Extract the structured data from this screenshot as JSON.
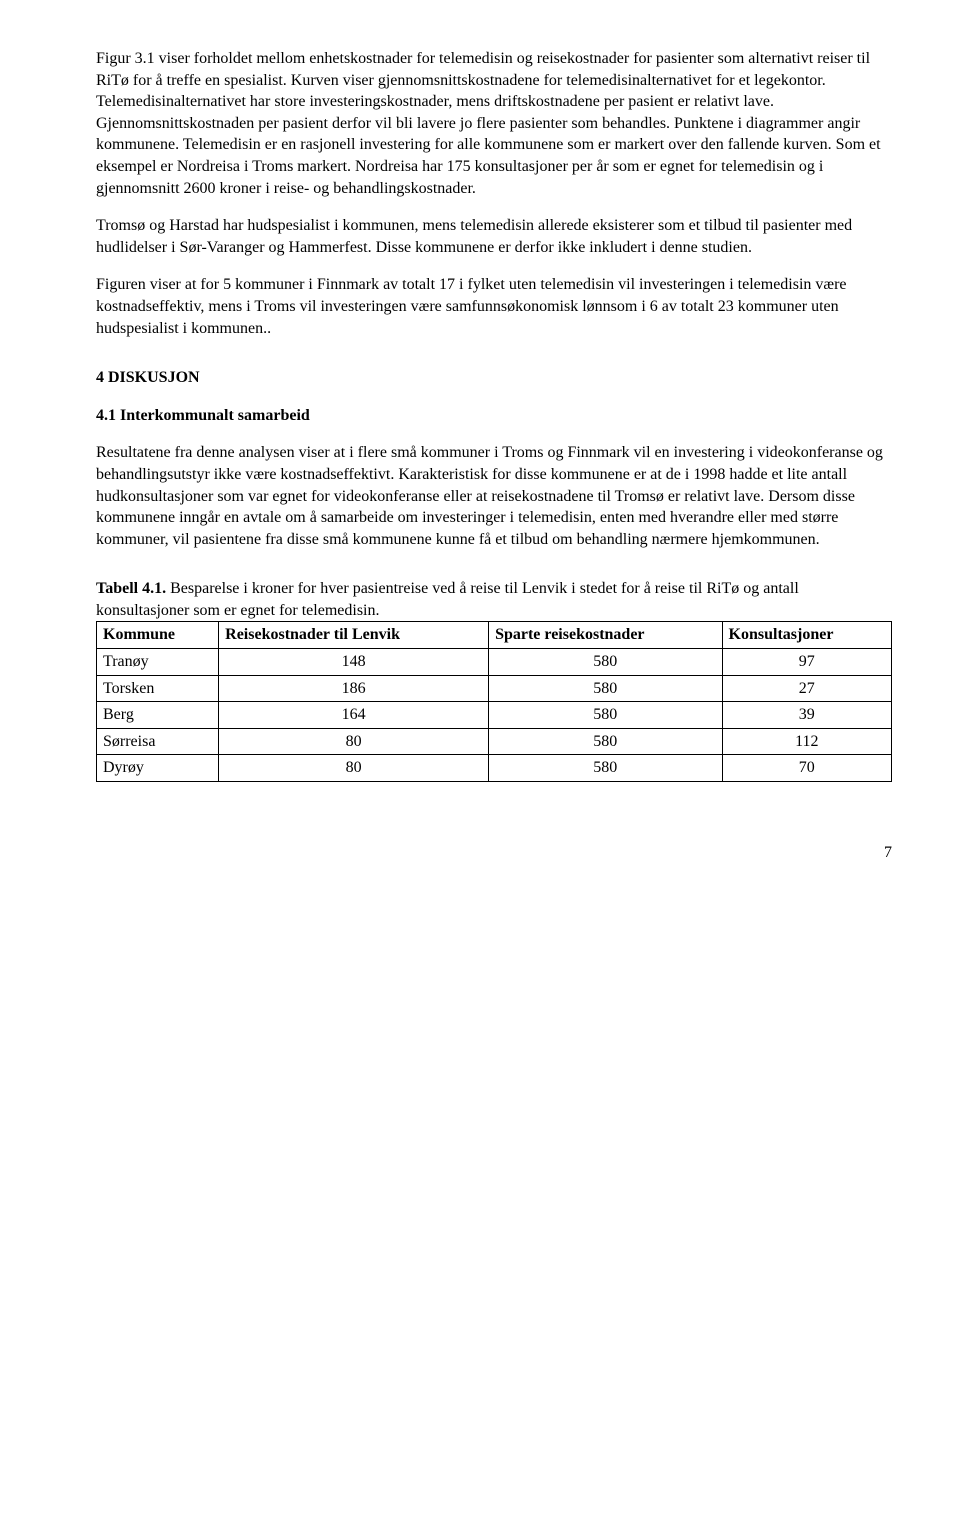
{
  "paragraphs": {
    "p1": "Figur 3.1 viser forholdet mellom enhetskostnader for telemedisin og reisekostnader for pasienter som alternativt reiser til RiTø for å treffe en spesialist. Kurven viser gjennomsnittskostnadene for telemedisinalternativet for et legekontor. Telemedisinalternativet har store investeringskostnader, mens driftskostnadene per pasient er relativt lave. Gjennomsnittskostnaden per pasient derfor vil bli lavere jo flere pasienter som behandles. Punktene i diagrammer angir kommunene. Telemedisin er en rasjonell investering for alle kommunene som er markert over den fallende kurven. Som et eksempel er Nordreisa i Troms markert. Nordreisa har 175 konsultasjoner per år som er egnet for telemedisin og i gjennomsnitt 2600 kroner i reise- og behandlingskostnader.",
    "p2": "Tromsø og Harstad har hudspesialist i kommunen, mens telemedisin allerede eksisterer som et tilbud til pasienter med hudlidelser i Sør-Varanger og Hammerfest. Disse kommunene er derfor ikke inkludert i denne studien.",
    "p3": "Figuren viser at for 5 kommuner i Finnmark av totalt 17 i fylket uten telemedisin vil investeringen i telemedisin være kostnadseffektiv, mens i Troms vil investeringen være samfunnsøkonomisk lønnsom i 6 av totalt 23 kommuner uten hudspesialist i kommunen..",
    "section4": "4    DISKUSJON",
    "section41": "4.1 Interkommunalt samarbeid",
    "p4": "Resultatene fra denne analysen viser at i flere små kommuner i Troms og Finnmark vil en investering i videokonferanse og behandlingsutstyr ikke være kostnadseffektivt. Karakteristisk for disse kommunene er at de i 1998 hadde et lite antall hudkonsultasjoner som var egnet for videokonferanse eller at reisekostnadene til Tromsø er relativt lave. Dersom disse kommunene inngår en avtale om å samarbeide om investeringer i telemedisin, enten med hverandre eller med større kommuner, vil pasientene fra disse små kommunene kunne få et tilbud om behandling nærmere hjemkommunen."
  },
  "table": {
    "caption_bold": "Tabell 4.1.",
    "caption_rest": " Besparelse i kroner for hver pasientreise ved å reise til Lenvik i stedet for å reise til RiTø og antall konsultasjoner som er egnet for telemedisin.",
    "headers": {
      "col1": "Kommune",
      "col2": "Reisekostnader til Lenvik",
      "col3": "Sparte reisekostnader",
      "col4": "Konsultasjoner"
    },
    "rows": [
      {
        "kommune": "Tranøy",
        "reise": "148",
        "sparte": "580",
        "kons": "97"
      },
      {
        "kommune": "Torsken",
        "reise": "186",
        "sparte": "580",
        "kons": "27"
      },
      {
        "kommune": "Berg",
        "reise": "164",
        "sparte": "580",
        "kons": "39"
      },
      {
        "kommune": "Sørreisa",
        "reise": "80",
        "sparte": "580",
        "kons": "112"
      },
      {
        "kommune": "Dyrøy",
        "reise": "80",
        "sparte": "580",
        "kons": "70"
      }
    ]
  },
  "page_number": "7"
}
